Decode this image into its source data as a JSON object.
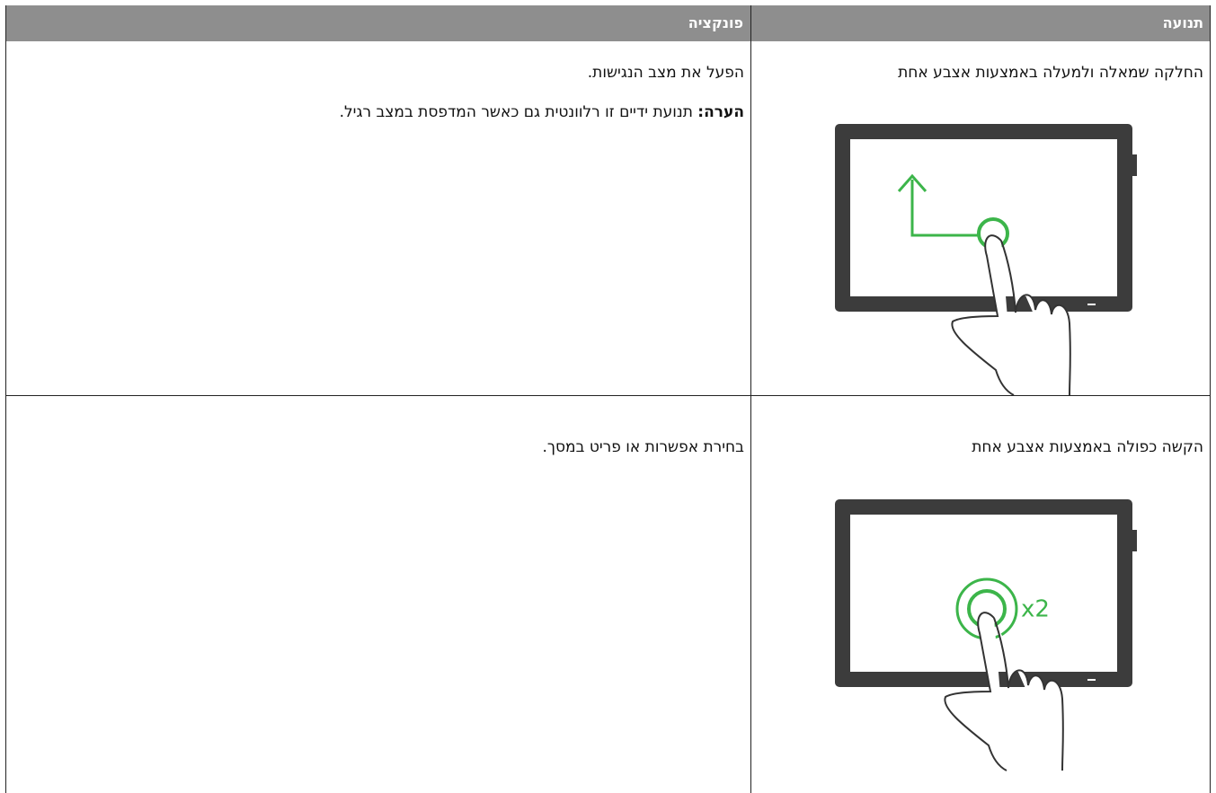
{
  "table": {
    "header": [
      "תנועה",
      "פונקציה"
    ],
    "rows": [
      {
        "gesture": "החלקה שמאלה ולמעלה באמצעות אצבע אחת",
        "function": "הפעל את מצב הנגישות.",
        "note_label": "הערה:",
        "note": "תנועת ידיים זו רלוונטית גם כאשר המדפסת במצב רגיל."
      },
      {
        "gesture": "הקשה כפולה באמצעות אצבע אחת",
        "function": "בחירת אפשרות או פריט במסך.",
        "illustration_label": "x2"
      }
    ]
  }
}
